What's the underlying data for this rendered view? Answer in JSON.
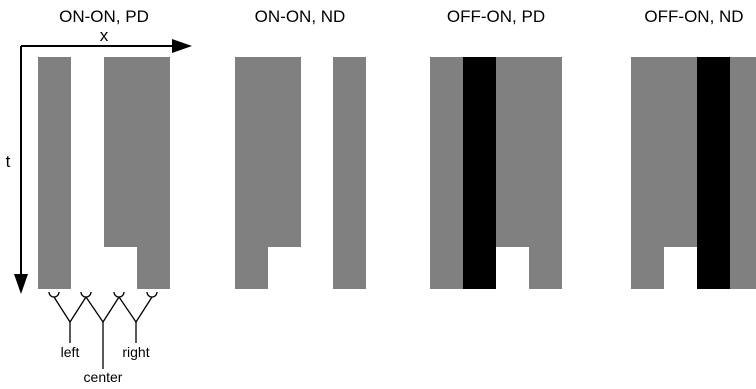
{
  "panels": [
    {
      "title": "ON-ON, PD"
    },
    {
      "title": "ON-ON, ND"
    },
    {
      "title": "OFF-ON, PD"
    },
    {
      "title": "OFF-ON, ND"
    }
  ],
  "axes": {
    "x_label": "x",
    "t_label": "t"
  },
  "receptive_fields": {
    "left": "left",
    "center": "center",
    "right": "right"
  },
  "colors": {
    "gray": "#808080",
    "black": "#000000",
    "white": "#ffffff"
  }
}
